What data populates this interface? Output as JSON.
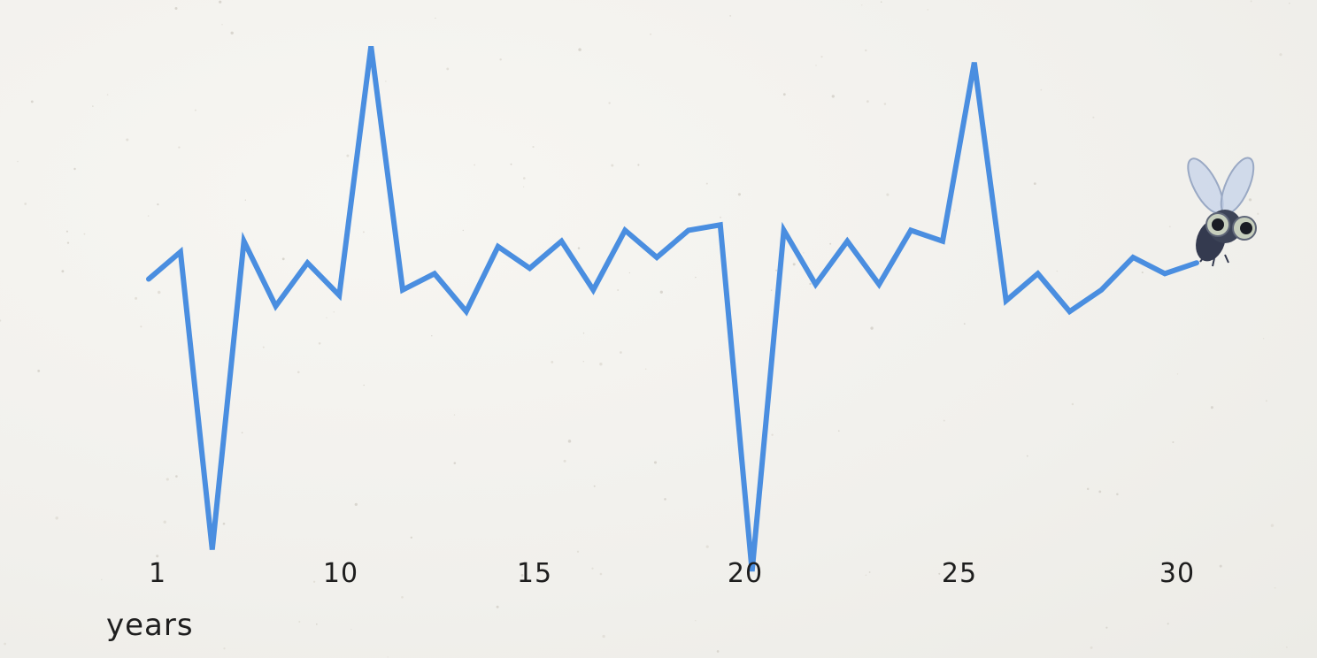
{
  "chart_data": {
    "type": "line",
    "xlabel": "years",
    "ylabel": "",
    "title": "",
    "x_ticks": [
      "1",
      "10",
      "15",
      "20",
      "25",
      "30"
    ],
    "x_tick_positions": [
      1,
      10,
      15,
      20,
      25,
      30
    ],
    "grid": false,
    "legend": "none",
    "series": [
      {
        "color": "#4a8ee0",
        "x": [
          1,
          2,
          3,
          4,
          5,
          6,
          7,
          8,
          9,
          10,
          11,
          12,
          13,
          14,
          15,
          16,
          17,
          18,
          19,
          20,
          21,
          22,
          23,
          24,
          25,
          26,
          27,
          28,
          29,
          30,
          31,
          32,
          33,
          34
        ],
        "values": [
          54,
          59,
          4,
          61,
          49,
          57,
          51,
          97,
          52,
          55,
          48,
          60,
          56,
          61,
          52,
          63,
          58,
          63,
          64,
          0,
          63,
          53,
          61,
          53,
          63,
          61,
          94,
          50,
          55,
          48,
          52,
          58,
          55,
          57
        ]
      }
    ],
    "annotations": [
      {
        "icon": "fly-icon"
      }
    ]
  }
}
